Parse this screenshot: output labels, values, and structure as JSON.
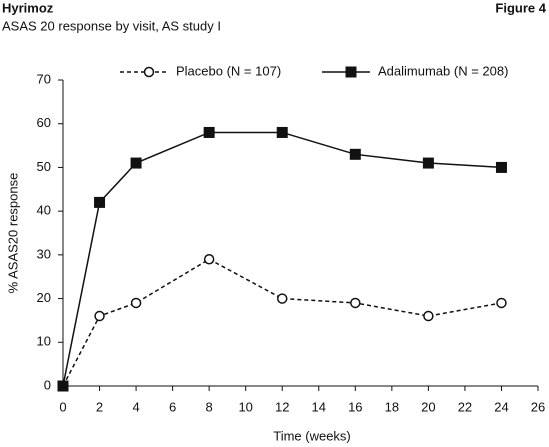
{
  "chart_data": {
    "type": "line",
    "title": "Hyrimoz",
    "figure_label": "Figure 4",
    "subtitle": "ASAS 20 response by visit, AS study I",
    "x_label": "Time (weeks)",
    "y_label": "% ASAS20 response",
    "x": [
      0,
      2,
      4,
      8,
      12,
      16,
      20,
      24
    ],
    "series": [
      {
        "name": "Placebo (N = 107)",
        "color": "#111111",
        "linestyle": "dashed",
        "marker": "circle-open",
        "values": [
          0,
          16,
          19,
          29,
          20,
          19,
          16,
          19
        ]
      },
      {
        "name": "Adalimumab (N = 208)",
        "color": "#111111",
        "linestyle": "solid",
        "marker": "square-filled",
        "values": [
          0,
          42,
          51,
          58,
          58,
          53,
          51,
          50
        ]
      }
    ],
    "xlim": [
      0,
      26
    ],
    "xticks": [
      0,
      2,
      4,
      6,
      8,
      10,
      12,
      14,
      16,
      18,
      20,
      22,
      24,
      26
    ],
    "ylim": [
      0,
      70
    ],
    "yticks": [
      0,
      10,
      20,
      30,
      40,
      50,
      60,
      70
    ],
    "legend": "top"
  }
}
